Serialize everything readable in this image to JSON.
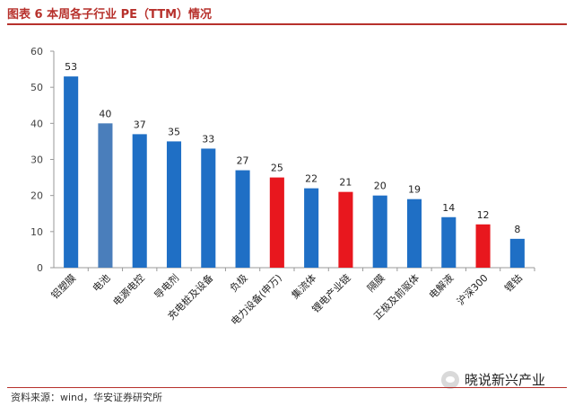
{
  "header": {
    "title": "图表 6  本周各子行业 PE（TTM）情况"
  },
  "footer": {
    "source": "资料来源：wind，华安证券研究所",
    "watermark": "晓说新兴产业"
  },
  "colors": {
    "blue": "#1f6fc5",
    "light_blue": "#4a7ebb",
    "red": "#e8171e",
    "title_red": "#b7312c"
  },
  "chart_data": {
    "type": "bar",
    "categories": [
      "铝塑膜",
      "电池",
      "电源电控",
      "导电剂",
      "充电桩及设备",
      "负极",
      "电力设备(申万)",
      "集流体",
      "锂电产业链",
      "隔膜",
      "正极及前驱体",
      "电解液",
      "沪深300",
      "锂钴"
    ],
    "values": [
      53,
      40,
      37,
      35,
      33,
      27,
      25,
      22,
      21,
      20,
      19,
      14,
      12,
      8
    ],
    "bar_colors": [
      "blue",
      "light_blue",
      "blue",
      "blue",
      "blue",
      "blue",
      "red",
      "blue",
      "red",
      "blue",
      "blue",
      "blue",
      "red",
      "blue"
    ],
    "ylim": [
      0,
      60
    ],
    "yticks": [
      0,
      10,
      20,
      30,
      40,
      50,
      60
    ],
    "grid": false,
    "title": "",
    "xlabel": "",
    "ylabel": ""
  }
}
